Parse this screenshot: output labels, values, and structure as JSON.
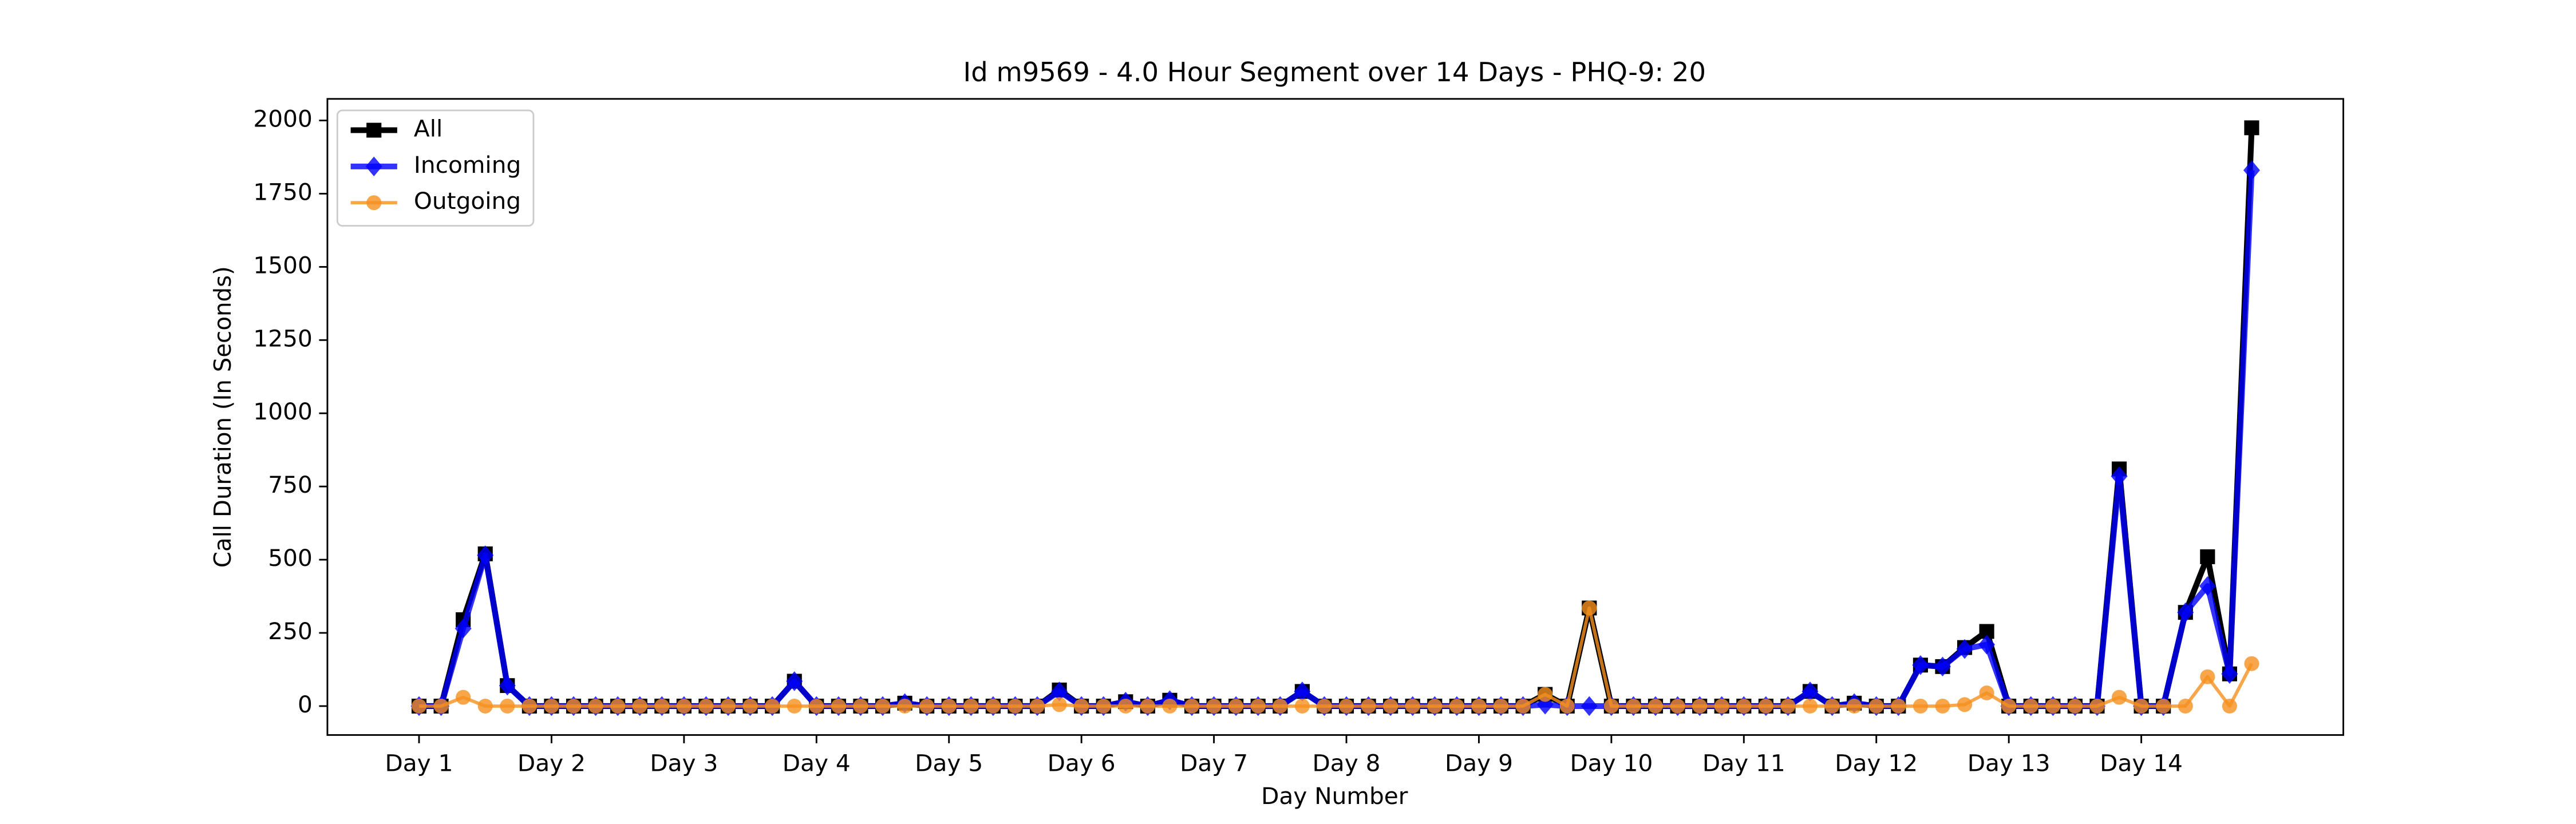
{
  "chart_data": {
    "type": "line",
    "title": "Id m9569 - 4.0 Hour Segment over 14 Days - PHQ-9: 20",
    "xlabel": "Day Number",
    "ylabel": "Call Duration (In Seconds)",
    "x": [
      0,
      1,
      2,
      3,
      4,
      5,
      6,
      7,
      8,
      9,
      10,
      11,
      12,
      13,
      14,
      15,
      16,
      17,
      18,
      19,
      20,
      21,
      22,
      23,
      24,
      25,
      26,
      27,
      28,
      29,
      30,
      31,
      32,
      33,
      34,
      35,
      36,
      37,
      38,
      39,
      40,
      41,
      42,
      43,
      44,
      45,
      46,
      47,
      48,
      49,
      50,
      51,
      52,
      53,
      54,
      55,
      56,
      57,
      58,
      59,
      60,
      61,
      62,
      63,
      64,
      65,
      66,
      67,
      68,
      69,
      70,
      71,
      72,
      73,
      74,
      75,
      76,
      77,
      78,
      79,
      80,
      81,
      82,
      83
    ],
    "series": [
      {
        "name": "All",
        "color": "#000000",
        "marker": "square",
        "values": [
          0,
          0,
          295,
          520,
          70,
          0,
          0,
          0,
          0,
          0,
          0,
          0,
          0,
          0,
          0,
          0,
          0,
          85,
          0,
          0,
          0,
          0,
          10,
          0,
          0,
          0,
          0,
          0,
          0,
          55,
          0,
          0,
          15,
          0,
          20,
          0,
          0,
          0,
          0,
          0,
          50,
          0,
          0,
          0,
          0,
          0,
          0,
          0,
          0,
          0,
          0,
          40,
          0,
          335,
          0,
          0,
          0,
          0,
          0,
          0,
          0,
          0,
          0,
          50,
          0,
          10,
          0,
          0,
          140,
          135,
          200,
          255,
          0,
          0,
          0,
          0,
          0,
          810,
          0,
          0,
          320,
          510,
          110,
          1975
        ]
      },
      {
        "name": "Incoming",
        "color": "#0000ff",
        "marker": "diamond",
        "values": [
          0,
          0,
          265,
          515,
          70,
          0,
          0,
          0,
          0,
          0,
          0,
          0,
          0,
          0,
          0,
          0,
          0,
          85,
          0,
          0,
          0,
          0,
          10,
          0,
          0,
          0,
          0,
          0,
          0,
          50,
          0,
          0,
          15,
          0,
          20,
          0,
          0,
          0,
          0,
          0,
          50,
          0,
          0,
          0,
          0,
          0,
          0,
          0,
          0,
          0,
          0,
          5,
          0,
          0,
          0,
          0,
          0,
          0,
          0,
          0,
          0,
          0,
          0,
          50,
          0,
          10,
          0,
          0,
          140,
          135,
          195,
          210,
          0,
          0,
          0,
          0,
          0,
          785,
          0,
          0,
          320,
          410,
          110,
          1830
        ]
      },
      {
        "name": "Outgoing",
        "color": "#f5901e",
        "marker": "circle",
        "values": [
          0,
          0,
          30,
          0,
          0,
          0,
          0,
          0,
          0,
          0,
          0,
          0,
          0,
          0,
          0,
          0,
          0,
          0,
          0,
          0,
          0,
          0,
          0,
          0,
          0,
          0,
          0,
          0,
          0,
          5,
          0,
          0,
          0,
          0,
          0,
          0,
          0,
          0,
          0,
          0,
          0,
          0,
          0,
          0,
          0,
          0,
          0,
          0,
          0,
          0,
          0,
          40,
          0,
          335,
          0,
          0,
          0,
          0,
          0,
          0,
          0,
          0,
          0,
          0,
          0,
          0,
          0,
          0,
          0,
          0,
          5,
          45,
          0,
          0,
          0,
          0,
          0,
          30,
          0,
          0,
          0,
          100,
          0,
          145
        ]
      }
    ],
    "xlim": [
      -4.15,
      87.15
    ],
    "xticks": [
      {
        "value": 0,
        "label": "Day 1"
      },
      {
        "value": 6,
        "label": "Day 2"
      },
      {
        "value": 12,
        "label": "Day 3"
      },
      {
        "value": 18,
        "label": "Day 4"
      },
      {
        "value": 24,
        "label": "Day 5"
      },
      {
        "value": 30,
        "label": "Day 6"
      },
      {
        "value": 36,
        "label": "Day 7"
      },
      {
        "value": 42,
        "label": "Day 8"
      },
      {
        "value": 48,
        "label": "Day 9"
      },
      {
        "value": 54,
        "label": "Day 10"
      },
      {
        "value": 60,
        "label": "Day 11"
      },
      {
        "value": 66,
        "label": "Day 12"
      },
      {
        "value": 72,
        "label": "Day 13"
      },
      {
        "value": 78,
        "label": "Day 14"
      }
    ],
    "ylim": [
      -98.75,
      2073.75
    ],
    "yticks": [
      0,
      250,
      500,
      750,
      1000,
      1250,
      1500,
      1750,
      2000
    ],
    "legend": "upper left",
    "grid": false
  }
}
